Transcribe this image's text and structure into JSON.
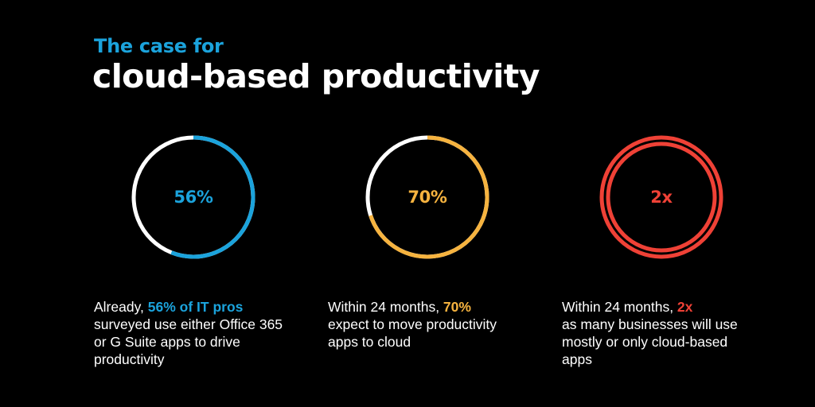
{
  "header": {
    "kicker": "The case for",
    "title": "cloud-based productivity"
  },
  "colors": {
    "background": "#000000",
    "blue": "#1ba3dc",
    "orange": "#f6b33f",
    "red": "#ef4136",
    "white": "#ffffff"
  },
  "stats": [
    {
      "value": "56%",
      "fill_fraction": 0.56,
      "color": "#1ba3dc",
      "desc_before": "Already, ",
      "desc_highlight": "56% of IT pros",
      "desc_after": "surveyed use either Office 365 or G Suite apps to drive productivity"
    },
    {
      "value": "70%",
      "fill_fraction": 0.7,
      "color": "#f6b33f",
      "desc_before": "Within 24 months, ",
      "desc_highlight": "70%",
      "desc_after": "expect to move productivity apps to cloud"
    },
    {
      "value": "2x",
      "color": "#ef4136",
      "desc_before": "Within 24 months, ",
      "desc_highlight": "2x",
      "desc_after": "as many businesses will use mostly or only cloud-based apps"
    }
  ]
}
